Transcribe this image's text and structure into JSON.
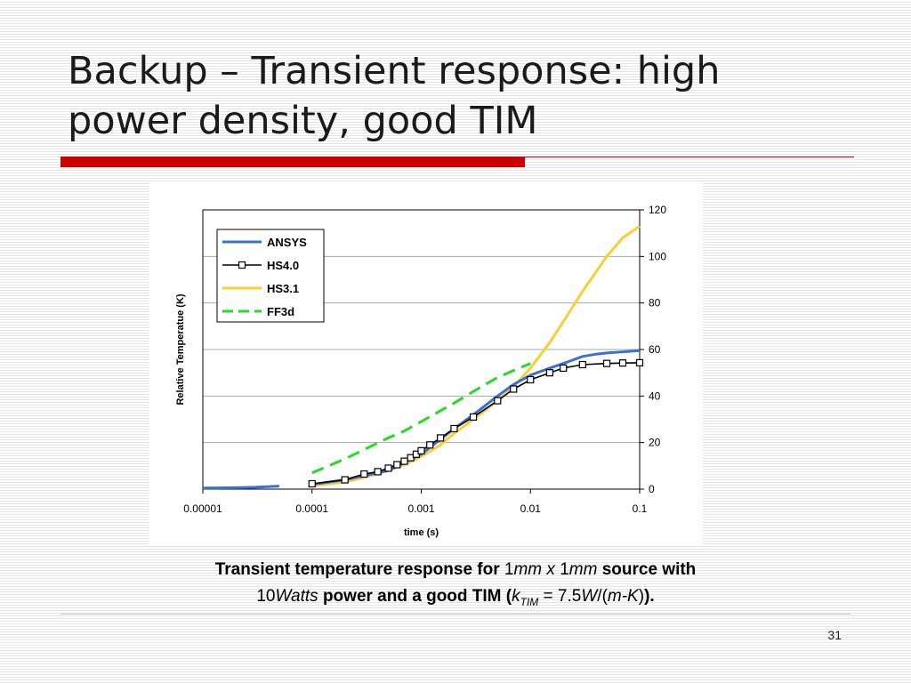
{
  "slide": {
    "title_line1": "Backup – Transient response: high",
    "title_line2": "power density, good TIM",
    "page_number": "31",
    "caption": {
      "p1": "Transient temperature response for ",
      "p2": "1",
      "p3": "mm x ",
      "p4": "1",
      "p5": "mm",
      "p6": " source with",
      "p7": "10",
      "p8": "Watts",
      "p9": " power and a good TIM (",
      "p10": "k",
      "p11": "TIM",
      "p12": " = 7.5",
      "p13": "W",
      "p14": "/(",
      "p15": "m-K",
      "p16": ")",
      "p17": ")."
    }
  },
  "colors": {
    "title_bar": "#cc0000",
    "ansys": "#3a6fd8",
    "hs40": "#000000",
    "hs31": "#ffcc33",
    "ff3d": "#22dd22"
  },
  "chart_data": {
    "type": "line",
    "xscale": "log",
    "xlabel": "time (s)",
    "ylabel": "Relative Temperatue (K)",
    "xlim": [
      1e-05,
      0.1
    ],
    "ylim": [
      0,
      120
    ],
    "x_ticks": [
      "0.00001",
      "0.0001",
      "0.001",
      "0.01",
      "0.1"
    ],
    "y_ticks": [
      "0",
      "20",
      "40",
      "60",
      "80",
      "100",
      "120"
    ],
    "y_axis_side": "right",
    "grid": "horizontal",
    "legend_position": "top-left",
    "series": [
      {
        "name": "ANSYS",
        "style": "solid",
        "color": "#3a6fd8",
        "segments": [
          [
            [
              1e-05,
              0.5
            ],
            [
              2e-05,
              0.6
            ],
            [
              3e-05,
              0.8
            ],
            [
              5e-05,
              1.3
            ]
          ],
          [
            [
              0.0001,
              2
            ],
            [
              0.0002,
              4
            ],
            [
              0.0005,
              8
            ],
            [
              0.001,
              15
            ],
            [
              0.002,
              26
            ],
            [
              0.003,
              32
            ],
            [
              0.005,
              40
            ],
            [
              0.007,
              45
            ],
            [
              0.01,
              49
            ],
            [
              0.015,
              52
            ],
            [
              0.02,
              54
            ],
            [
              0.03,
              57
            ],
            [
              0.04,
              58
            ],
            [
              0.05,
              58.5
            ],
            [
              0.07,
              59
            ],
            [
              0.1,
              59.5
            ]
          ]
        ]
      },
      {
        "name": "HS4.0",
        "style": "solid-markers",
        "color": "#000000",
        "points": [
          [
            0.0001,
            2.3
          ],
          [
            0.0002,
            4
          ],
          [
            0.0003,
            6.5
          ],
          [
            0.0004,
            7.5
          ],
          [
            0.0005,
            9
          ],
          [
            0.0006,
            10.5
          ],
          [
            0.0007,
            12
          ],
          [
            0.0008,
            13.5
          ],
          [
            0.0009,
            15
          ],
          [
            0.001,
            16.5
          ],
          [
            0.0012,
            19
          ],
          [
            0.0015,
            22
          ],
          [
            0.002,
            26
          ],
          [
            0.003,
            31
          ],
          [
            0.005,
            38
          ],
          [
            0.007,
            43
          ],
          [
            0.01,
            47
          ],
          [
            0.015,
            50
          ],
          [
            0.02,
            52
          ],
          [
            0.03,
            53.5
          ],
          [
            0.05,
            54
          ],
          [
            0.07,
            54.2
          ],
          [
            0.1,
            54.3
          ]
        ]
      },
      {
        "name": "HS3.1",
        "style": "solid",
        "color": "#ffcc33",
        "points": [
          [
            0.0001,
            1.5
          ],
          [
            0.0002,
            3
          ],
          [
            0.0003,
            5
          ],
          [
            0.0005,
            8
          ],
          [
            0.0007,
            10.5
          ],
          [
            0.001,
            14
          ],
          [
            0.0015,
            19
          ],
          [
            0.002,
            24
          ],
          [
            0.003,
            30
          ],
          [
            0.005,
            38
          ],
          [
            0.007,
            44
          ],
          [
            0.01,
            52
          ],
          [
            0.015,
            63
          ],
          [
            0.02,
            72
          ],
          [
            0.03,
            85
          ],
          [
            0.05,
            100
          ],
          [
            0.07,
            108
          ],
          [
            0.1,
            113
          ]
        ]
      },
      {
        "name": "FF3d",
        "style": "dashed",
        "color": "#22dd22",
        "points": [
          [
            0.0001,
            7
          ],
          [
            0.0002,
            13
          ],
          [
            0.0003,
            17
          ],
          [
            0.0005,
            22
          ],
          [
            0.0007,
            25
          ],
          [
            0.001,
            29
          ],
          [
            0.002,
            37
          ],
          [
            0.003,
            42
          ],
          [
            0.005,
            48
          ],
          [
            0.007,
            51
          ],
          [
            0.01,
            54
          ]
        ]
      }
    ]
  }
}
